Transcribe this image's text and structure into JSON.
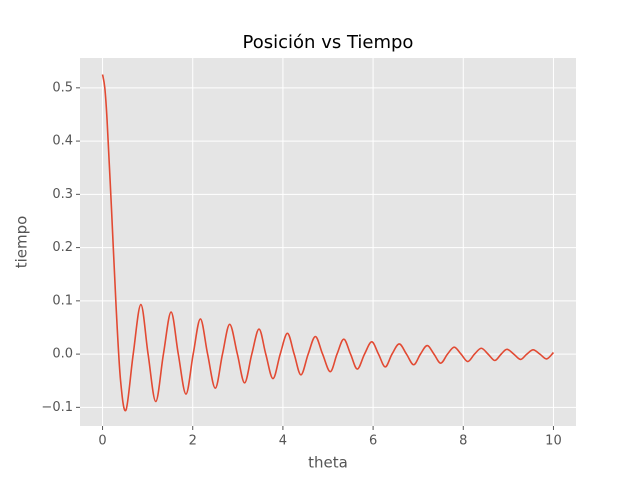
{
  "chart_data": {
    "type": "line",
    "title": "Posición vs Tiempo",
    "x_label": "theta",
    "y_label": "tiempo",
    "x": [
      0,
      0.05,
      0.1,
      0.2,
      0.3,
      0.4,
      0.52,
      0.68,
      0.85,
      1.01,
      1.18,
      1.35,
      1.52,
      1.68,
      1.85,
      2.01,
      2.17,
      2.33,
      2.5,
      2.66,
      2.82,
      2.99,
      3.15,
      3.31,
      3.47,
      3.62,
      3.78,
      3.94,
      4.1,
      4.25,
      4.4,
      4.56,
      4.72,
      4.88,
      5.05,
      5.2,
      5.35,
      5.5,
      5.65,
      5.81,
      5.97,
      6.12,
      6.27,
      6.42,
      6.58,
      6.74,
      6.9,
      7.05,
      7.2,
      7.35,
      7.5,
      7.65,
      7.8,
      7.95,
      8.1,
      8.25,
      8.4,
      8.55,
      8.7,
      8.84,
      8.97,
      9.12,
      9.27,
      9.41,
      9.55,
      9.7,
      9.85,
      10
    ],
    "values": [
      0.525,
      0.5,
      0.44,
      0.27,
      0.09,
      -0.05,
      -0.105,
      0,
      0.093,
      0,
      -0.089,
      0,
      0.079,
      0,
      -0.075,
      0,
      0.066,
      0,
      -0.064,
      0,
      0.056,
      0,
      -0.054,
      0,
      0.047,
      0,
      -0.046,
      0,
      0.039,
      0,
      -0.039,
      0,
      0.033,
      0,
      -0.033,
      0,
      0.028,
      0,
      -0.028,
      0,
      0.023,
      0,
      -0.024,
      0,
      0.019,
      0,
      -0.02,
      0,
      0.016,
      0,
      -0.017,
      0,
      0.013,
      0,
      -0.014,
      0,
      0.011,
      0,
      -0.012,
      0,
      0.009,
      0,
      -0.01,
      0,
      0.008,
      0,
      -0.009,
      0.003
    ],
    "color": "#E24A33",
    "xlim": [
      -0.5,
      10.5
    ],
    "ylim": [
      -0.135,
      0.556
    ],
    "xticks": [
      0,
      2,
      4,
      6,
      8,
      10
    ],
    "yticks": [
      {
        "value": -0.1,
        "label": "−0.1"
      },
      {
        "value": 0,
        "label": "0.0"
      },
      0.1,
      0.2,
      0.3,
      0.4,
      0.5
    ],
    "grid": true
  }
}
